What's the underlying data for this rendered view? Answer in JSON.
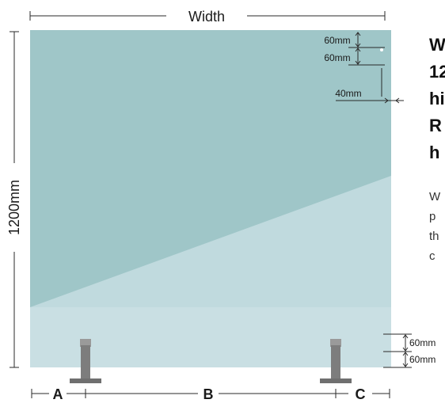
{
  "dimensions": {
    "width_label": "Width",
    "height_label": "1200mm",
    "top_offset_1": "60mm",
    "top_offset_2": "60mm",
    "side_offset": "40mm",
    "bottom_offset_1": "60mm",
    "bottom_offset_2": "60mm",
    "segment_a": "A",
    "segment_b": "B",
    "segment_c": "C"
  },
  "side_text": {
    "heading_lines": [
      "W",
      "12",
      "hi",
      "R",
      "h"
    ],
    "body_lines": [
      "W",
      "p",
      "th",
      "c"
    ]
  },
  "colors": {
    "glass_main": "#9fc6c8",
    "glass_light": "#c0dade",
    "glass_bottom": "#cfe3e6",
    "post": "#7d7d7d",
    "line": "#2a2a2a"
  }
}
